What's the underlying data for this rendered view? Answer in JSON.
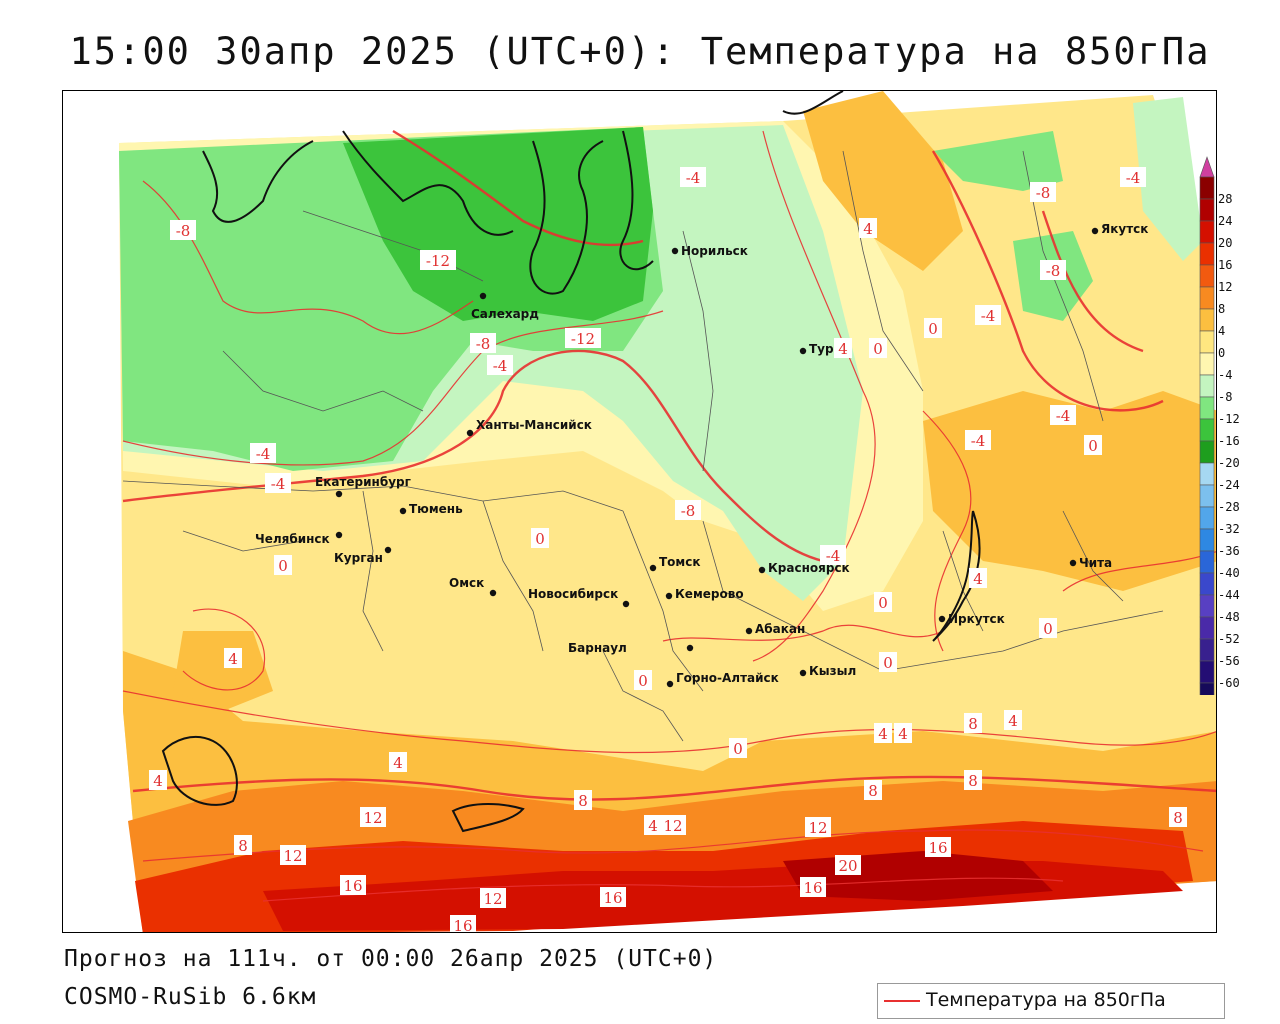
{
  "title": "15:00 30апр 2025 (UTC+0): Температура на 850гПа",
  "forecast_line": "Прогноз на 111ч. от 00:00 26апр 2025 (UTC+0)",
  "model_line": "COSMO-RuSib 6.6км",
  "legend": {
    "label": "Температура на 850гПа",
    "line_color": "#e83030"
  },
  "colorbar": {
    "ticks": [
      "28",
      "24",
      "20",
      "16",
      "12",
      "8",
      "4",
      "0",
      "-4",
      "-8",
      "-12",
      "-16",
      "-20",
      "-24",
      "-28",
      "-32",
      "-36",
      "-40",
      "-44",
      "-48",
      "-52",
      "-56",
      "-60"
    ],
    "colors": [
      "#8b0000",
      "#b00000",
      "#d41000",
      "#ea3000",
      "#f25a10",
      "#f88a20",
      "#fcbf40",
      "#ffe780",
      "#fff6b0",
      "#c4f5c0",
      "#80e680",
      "#3cc43c",
      "#1e9e1e",
      "#a6d8f2",
      "#7cc0ee",
      "#52a6ea",
      "#2e88e2",
      "#2a66d8",
      "#3a48cc",
      "#5840c2",
      "#4a2aa8",
      "#38208e",
      "#240e74",
      "#160a5a"
    ],
    "top_arrow_color": "#d040a0",
    "bottom_arrow_color": "#9a40d8"
  },
  "cities": [
    {
      "name": "Салехард"
    },
    {
      "name": "Норильск"
    },
    {
      "name": "Якутск"
    },
    {
      "name": "Тура"
    },
    {
      "name": "Ханты-Мансийск"
    },
    {
      "name": "Екатеринбург"
    },
    {
      "name": "Тюмень"
    },
    {
      "name": "Челябинск"
    },
    {
      "name": "Курган"
    },
    {
      "name": "Омск"
    },
    {
      "name": "Новосибирск"
    },
    {
      "name": "Томск"
    },
    {
      "name": "Кемерово"
    },
    {
      "name": "Красноярск"
    },
    {
      "name": "Барнаул"
    },
    {
      "name": "Абакан"
    },
    {
      "name": "Горно-Алтайск"
    },
    {
      "name": "Кызыл"
    },
    {
      "name": "Иркутск"
    },
    {
      "name": "Чита"
    }
  ],
  "isotherm_labels": [
    "-8",
    "-4",
    "-8",
    "-4",
    "-12",
    "-12",
    "-8",
    "-4",
    "-4",
    "4",
    "-8",
    "-4",
    "0",
    "-4",
    "4",
    "0",
    "-4",
    "0",
    "-4",
    "-8",
    "0",
    "-4",
    "0",
    "4",
    "0",
    "0",
    "0",
    "0",
    "4",
    "4",
    "0",
    "4",
    "4",
    "8",
    "4",
    "4",
    "8",
    "12",
    "8",
    "4",
    "12",
    "8",
    "12",
    "16",
    "8",
    "8",
    "12",
    "16",
    "12",
    "16",
    "16",
    "20",
    "16"
  ]
}
